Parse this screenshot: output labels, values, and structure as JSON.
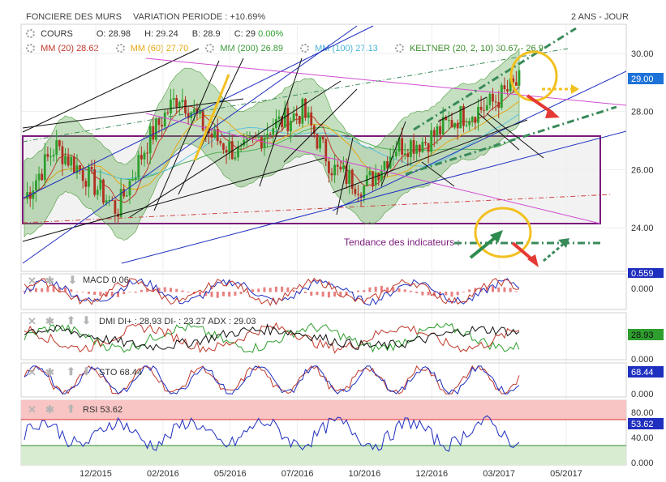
{
  "header": {
    "title": "FONCIERE DES MURS",
    "variation": "VARIATION PERIODE : +10.69%",
    "period": "2 ANS - JOUR"
  },
  "legend": {
    "cours": {
      "label": "COURS",
      "o": "O: 28.98",
      "h": "H: 29.24",
      "b": "B: 28.9",
      "c": "C: 29",
      "chg": "0.00%"
    },
    "mm20": "MM (20) 28.62",
    "mm60": "MM (60) 27.70",
    "mm200": "MM (200) 26.89",
    "mm100": "MM (100) 27.13",
    "keltner": "KELTNER (20, 2, 10) 30.67 - 26.9"
  },
  "colors": {
    "up": "#2e9e2e",
    "down": "#b03020",
    "mm20": "#c0392b",
    "mm60": "#e6a817",
    "mm200": "#4caf50",
    "mm100": "#5bc0de",
    "keltner_band": "#5aa64a",
    "trend_blue": "#1f2fbf",
    "magenta": "#d24cd2",
    "rect": "#7a1a7a",
    "price_tag": "#1e73d8"
  },
  "annotation": "Tendance des indicateurs :",
  "price_tag": "29.00",
  "indicators": {
    "macd": {
      "label": "MACD",
      "value": "0.06",
      "tag": "0.559",
      "zero": "0.000"
    },
    "dmi": {
      "label": "DMI DI+ : 28.93 DI- : 23.27 ADX : 29.03",
      "tag": "28.93",
      "zero": "0.000"
    },
    "sto": {
      "label": "STO",
      "value": "68.44",
      "tag": "68.44",
      "zero": "0.000"
    },
    "rsi": {
      "label": "RSI",
      "value": "53.62",
      "tag": "53.62",
      "ticks": [
        "80.00",
        "40.00",
        "0.000"
      ]
    }
  },
  "chart_data": {
    "type": "line",
    "title": "FONCIERE DES MURS",
    "series": [
      {
        "name": "COURS",
        "values": [
          25.0,
          26.8,
          25.8,
          24.6,
          27.0,
          28.6,
          27.2,
          26.5,
          27.5,
          28.0,
          26.0,
          25.4,
          26.8,
          27.0,
          27.8,
          28.2,
          29.0
        ]
      }
    ],
    "x_ticks": [
      "12/2015",
      "02/2016",
      "05/2016",
      "07/2016",
      "10/2016",
      "12/2016",
      "03/2017",
      "05/2017"
    ],
    "y_ticks": [
      "30.00",
      "28.00",
      "26.00",
      "24.00"
    ],
    "ylim": [
      22.5,
      31.0
    ]
  }
}
